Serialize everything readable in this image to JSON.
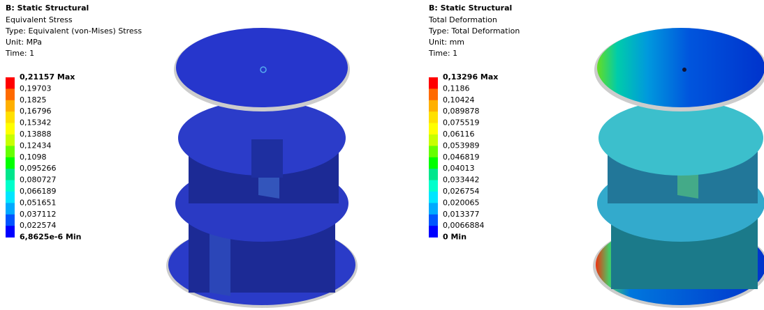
{
  "panels": [
    {
      "title": "B: Static Structural",
      "lines": [
        "Equivalent Stress",
        "Type: Equivalent (von-Mises) Stress",
        "Unit: MPa",
        "Time: 1"
      ],
      "legend": [
        "0,21157 Max",
        "0,19703",
        "0,1825",
        "0,16796",
        "0,15342",
        "0,13888",
        "0,12434",
        "0,1098",
        "0,095266",
        "0,080727",
        "0,066189",
        "0,051651",
        "0,037112",
        "0,022574",
        "6,8625e-6 Min"
      ]
    },
    {
      "title": "B: Static Structural",
      "lines": [
        "Total Deformation",
        "Type: Total Deformation",
        "Unit: mm",
        "Time: 1"
      ],
      "legend": [
        "0,13296 Max",
        "0,1186",
        "0,10424",
        "0,089878",
        "0,075519",
        "0,06116",
        "0,053989",
        "0,046819",
        "0,04013",
        "0,033442",
        "0,026754",
        "0,020065",
        "0,013377",
        "0,0066884",
        "0 Min"
      ]
    }
  ],
  "legend_colors": [
    "#ff0000",
    "#ff6a00",
    "#ffb000",
    "#ffe000",
    "#ffff00",
    "#c8ff00",
    "#66ff00",
    "#00ff00",
    "#00e68c",
    "#00ffcc",
    "#00e6ff",
    "#00aaff",
    "#0055ff",
    "#0000ff"
  ]
}
